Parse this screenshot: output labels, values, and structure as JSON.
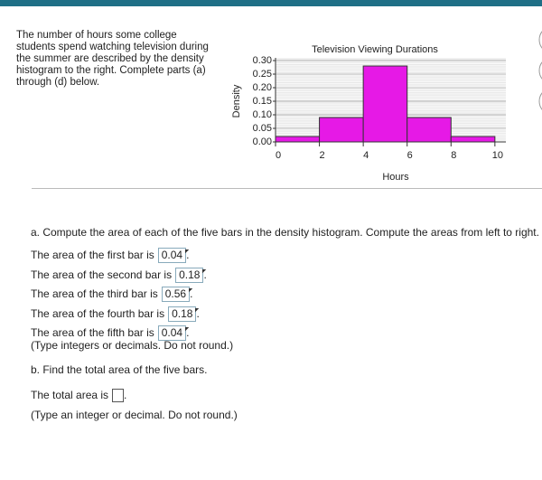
{
  "intro": "The number of hours some college students spend watching television during the summer are described by the density histogram to the right. Complete parts (a) through (d) below.",
  "chart_data": {
    "type": "histogram",
    "title": "Television Viewing Durations",
    "x_label": "Hours",
    "y_label": "Density",
    "bins": [
      0,
      2,
      4,
      6,
      8,
      10
    ],
    "values": [
      0.02,
      0.09,
      0.28,
      0.09,
      0.02
    ],
    "color": "#e619e6",
    "xlim": [
      0,
      10.5
    ],
    "ylim": [
      0,
      0.31
    ],
    "xticks": [
      0,
      2,
      4,
      6,
      8,
      10
    ],
    "yticks": [
      {
        "value": 0,
        "label": "0.00"
      },
      {
        "value": 0.05,
        "label": "0.05"
      },
      {
        "value": 0.1,
        "label": "0.10"
      },
      {
        "value": 0.15,
        "label": "0.15"
      },
      {
        "value": 0.2,
        "label": "0.20"
      },
      {
        "value": 0.25,
        "label": "0.25"
      },
      {
        "value": 0.3,
        "label": "0.30"
      }
    ],
    "grid": true
  },
  "part_a": {
    "prompt": "a. Compute the area of each of the five bars in the density histogram. Compute the areas from left to right.",
    "answers": [
      {
        "text": "The area of the first bar is",
        "value": "0.04"
      },
      {
        "text": "The area of the second bar is",
        "value": "0.18"
      },
      {
        "text": "The area of the third bar is",
        "value": "0.56"
      },
      {
        "text": "The area of the fourth bar is",
        "value": "0.18"
      },
      {
        "text": "The area of the fifth bar is",
        "value": "0.04"
      }
    ],
    "note": "(Type integers or decimals. Do not round.)"
  },
  "part_b": {
    "prompt": "b. Find the total area of the five bars.",
    "text": "The total area is",
    "note": "(Type an integer or decimal. Do not round.)"
  }
}
